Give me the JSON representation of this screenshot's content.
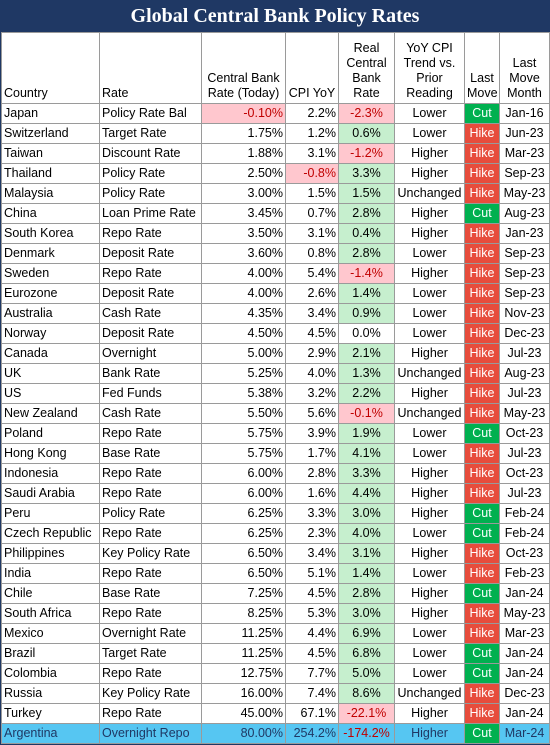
{
  "title": "Global Central Bank Policy Rates",
  "headers": {
    "country": "Country",
    "rate": "Rate",
    "cb_rate": "Central Bank Rate (Today)",
    "cpi": "CPI YoY",
    "real": "Real Central Bank Rate",
    "trend": "YoY CPI Trend vs. Prior Reading",
    "last_move": "Last Move",
    "last_move_month": "Last Move Month"
  },
  "colors": {
    "title_bg": "#1f3864",
    "cut": "#00b050",
    "hike": "#e74c3c",
    "negative_text": "#c00000",
    "negative_bg": "#ffc7ce",
    "positive_bg": "#c6efce",
    "highlight_row": "#56c6f2"
  },
  "rows": [
    {
      "country": "Japan",
      "rate": "Policy Rate Bal",
      "cb_rate": "-0.10%",
      "cpi": "2.2%",
      "real": "-2.3%",
      "trend": "Lower",
      "move": "Cut",
      "month": "Jan-16"
    },
    {
      "country": "Switzerland",
      "rate": "Target Rate",
      "cb_rate": "1.75%",
      "cpi": "1.2%",
      "real": "0.6%",
      "trend": "Lower",
      "move": "Hike",
      "month": "Jun-23"
    },
    {
      "country": "Taiwan",
      "rate": "Discount Rate",
      "cb_rate": "1.88%",
      "cpi": "3.1%",
      "real": "-1.2%",
      "trend": "Higher",
      "move": "Hike",
      "month": "Mar-23"
    },
    {
      "country": "Thailand",
      "rate": "Policy Rate",
      "cb_rate": "2.50%",
      "cpi": "-0.8%",
      "real": "3.3%",
      "trend": "Higher",
      "move": "Hike",
      "month": "Sep-23"
    },
    {
      "country": "Malaysia",
      "rate": "Policy Rate",
      "cb_rate": "3.00%",
      "cpi": "1.5%",
      "real": "1.5%",
      "trend": "Unchanged",
      "move": "Hike",
      "month": "May-23"
    },
    {
      "country": "China",
      "rate": "Loan Prime Rate",
      "cb_rate": "3.45%",
      "cpi": "0.7%",
      "real": "2.8%",
      "trend": "Higher",
      "move": "Cut",
      "month": "Aug-23"
    },
    {
      "country": "South Korea",
      "rate": "Repo Rate",
      "cb_rate": "3.50%",
      "cpi": "3.1%",
      "real": "0.4%",
      "trend": "Higher",
      "move": "Hike",
      "month": "Jan-23"
    },
    {
      "country": "Denmark",
      "rate": "Deposit Rate",
      "cb_rate": "3.60%",
      "cpi": "0.8%",
      "real": "2.8%",
      "trend": "Lower",
      "move": "Hike",
      "month": "Sep-23"
    },
    {
      "country": "Sweden",
      "rate": "Repo Rate",
      "cb_rate": "4.00%",
      "cpi": "5.4%",
      "real": "-1.4%",
      "trend": "Higher",
      "move": "Hike",
      "month": "Sep-23"
    },
    {
      "country": "Eurozone",
      "rate": "Deposit Rate",
      "cb_rate": "4.00%",
      "cpi": "2.6%",
      "real": "1.4%",
      "trend": "Lower",
      "move": "Hike",
      "month": "Sep-23"
    },
    {
      "country": "Australia",
      "rate": "Cash Rate",
      "cb_rate": "4.35%",
      "cpi": "3.4%",
      "real": "0.9%",
      "trend": "Lower",
      "move": "Hike",
      "month": "Nov-23"
    },
    {
      "country": "Norway",
      "rate": "Deposit Rate",
      "cb_rate": "4.50%",
      "cpi": "4.5%",
      "real": "0.0%",
      "trend": "Lower",
      "move": "Hike",
      "month": "Dec-23"
    },
    {
      "country": "Canada",
      "rate": "Overnight",
      "cb_rate": "5.00%",
      "cpi": "2.9%",
      "real": "2.1%",
      "trend": "Higher",
      "move": "Hike",
      "month": "Jul-23"
    },
    {
      "country": "UK",
      "rate": "Bank Rate",
      "cb_rate": "5.25%",
      "cpi": "4.0%",
      "real": "1.3%",
      "trend": "Unchanged",
      "move": "Hike",
      "month": "Aug-23"
    },
    {
      "country": "US",
      "rate": "Fed Funds",
      "cb_rate": "5.38%",
      "cpi": "3.2%",
      "real": "2.2%",
      "trend": "Higher",
      "move": "Hike",
      "month": "Jul-23"
    },
    {
      "country": "New Zealand",
      "rate": "Cash Rate",
      "cb_rate": "5.50%",
      "cpi": "5.6%",
      "real": "-0.1%",
      "trend": "Unchanged",
      "move": "Hike",
      "month": "May-23"
    },
    {
      "country": "Poland",
      "rate": "Repo Rate",
      "cb_rate": "5.75%",
      "cpi": "3.9%",
      "real": "1.9%",
      "trend": "Lower",
      "move": "Cut",
      "month": "Oct-23"
    },
    {
      "country": "Hong Kong",
      "rate": "Base Rate",
      "cb_rate": "5.75%",
      "cpi": "1.7%",
      "real": "4.1%",
      "trend": "Lower",
      "move": "Hike",
      "month": "Jul-23"
    },
    {
      "country": "Indonesia",
      "rate": "Repo Rate",
      "cb_rate": "6.00%",
      "cpi": "2.8%",
      "real": "3.3%",
      "trend": "Higher",
      "move": "Hike",
      "month": "Oct-23"
    },
    {
      "country": "Saudi Arabia",
      "rate": "Repo Rate",
      "cb_rate": "6.00%",
      "cpi": "1.6%",
      "real": "4.4%",
      "trend": "Higher",
      "move": "Hike",
      "month": "Jul-23"
    },
    {
      "country": "Peru",
      "rate": "Policy Rate",
      "cb_rate": "6.25%",
      "cpi": "3.3%",
      "real": "3.0%",
      "trend": "Higher",
      "move": "Cut",
      "month": "Feb-24"
    },
    {
      "country": "Czech Republic",
      "rate": "Repo Rate",
      "cb_rate": "6.25%",
      "cpi": "2.3%",
      "real": "4.0%",
      "trend": "Lower",
      "move": "Cut",
      "month": "Feb-24"
    },
    {
      "country": "Philippines",
      "rate": "Key Policy Rate",
      "cb_rate": "6.50%",
      "cpi": "3.4%",
      "real": "3.1%",
      "trend": "Higher",
      "move": "Hike",
      "month": "Oct-23"
    },
    {
      "country": "India",
      "rate": "Repo Rate",
      "cb_rate": "6.50%",
      "cpi": "5.1%",
      "real": "1.4%",
      "trend": "Lower",
      "move": "Hike",
      "month": "Feb-23"
    },
    {
      "country": "Chile",
      "rate": "Base Rate",
      "cb_rate": "7.25%",
      "cpi": "4.5%",
      "real": "2.8%",
      "trend": "Higher",
      "move": "Cut",
      "month": "Jan-24"
    },
    {
      "country": "South Africa",
      "rate": "Repo Rate",
      "cb_rate": "8.25%",
      "cpi": "5.3%",
      "real": "3.0%",
      "trend": "Higher",
      "move": "Hike",
      "month": "May-23"
    },
    {
      "country": "Mexico",
      "rate": "Overnight Rate",
      "cb_rate": "11.25%",
      "cpi": "4.4%",
      "real": "6.9%",
      "trend": "Lower",
      "move": "Hike",
      "month": "Mar-23"
    },
    {
      "country": "Brazil",
      "rate": "Target Rate",
      "cb_rate": "11.25%",
      "cpi": "4.5%",
      "real": "6.8%",
      "trend": "Lower",
      "move": "Cut",
      "month": "Jan-24"
    },
    {
      "country": "Colombia",
      "rate": "Repo Rate",
      "cb_rate": "12.75%",
      "cpi": "7.7%",
      "real": "5.0%",
      "trend": "Lower",
      "move": "Cut",
      "month": "Jan-24"
    },
    {
      "country": "Russia",
      "rate": "Key Policy Rate",
      "cb_rate": "16.00%",
      "cpi": "7.4%",
      "real": "8.6%",
      "trend": "Unchanged",
      "move": "Hike",
      "month": "Dec-23"
    },
    {
      "country": "Turkey",
      "rate": "Repo Rate",
      "cb_rate": "45.00%",
      "cpi": "67.1%",
      "real": "-22.1%",
      "trend": "Higher",
      "move": "Hike",
      "month": "Jan-24"
    },
    {
      "country": "Argentina",
      "rate": "Overnight Repo",
      "cb_rate": "80.00%",
      "cpi": "254.2%",
      "real": "-174.2%",
      "trend": "Higher",
      "move": "Cut",
      "month": "Mar-24",
      "highlight": true
    }
  ]
}
